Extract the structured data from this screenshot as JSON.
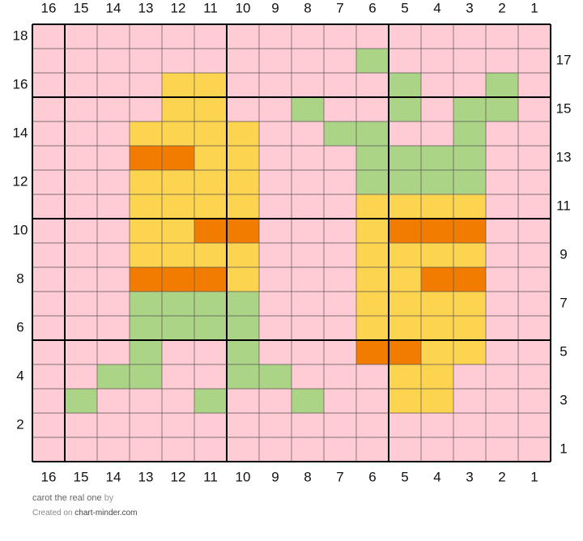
{
  "grid": {
    "columns": [
      16,
      15,
      14,
      13,
      12,
      11,
      10,
      9,
      8,
      7,
      6,
      5,
      4,
      3,
      2,
      1
    ],
    "row_labels_left": [
      18,
      16,
      14,
      12,
      10,
      8,
      6,
      4,
      2
    ],
    "row_labels_right": [
      17,
      15,
      13,
      11,
      9,
      7,
      5,
      3,
      1
    ],
    "palette": {
      "P": "#ffccd5",
      "Y": "#fdd44f",
      "O": "#f27c00",
      "G": "#abd486"
    },
    "rows": [
      "PPPPPPPPPPPPPPPP",
      "PPPPPPPPPPGPPPPP",
      "PPPPYYPPPPPGPPGP",
      "PPPPYYPPGPPGPGGP",
      "PPPYYYYPPGGPPGPP",
      "PPPOOYYPPPGGGGPP",
      "PPPYYYYPPPGGGGPP",
      "PPPYYYYPPPYYYYPP",
      "PPPYYOOPPPYOOOPP",
      "PPPYYYYPPPYYYYPP",
      "PPPOOOYPPPYYOOPP",
      "PPPGGGGPPPYYYYPP",
      "PPPGGGGPPPYYYYPP",
      "PPPGPPGPPPOOYYPP",
      "PPGGPPGGPPPYYPPP",
      "PGPPPGPPGPPYYPPP",
      "PPPPPPPPPPPPPPPP",
      "PPPPPPPPPPPPPPPP"
    ]
  },
  "footer": {
    "title": "carot the real one",
    "by": "by",
    "created": "Created on",
    "site": "chart-minder.com"
  }
}
